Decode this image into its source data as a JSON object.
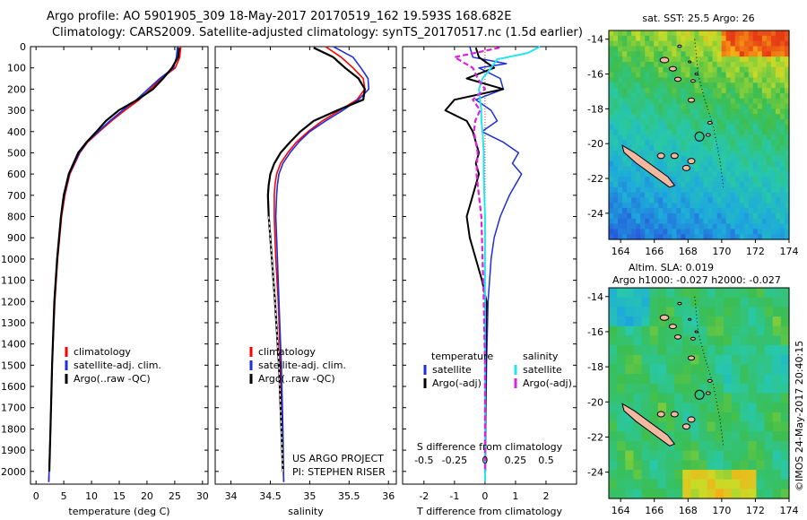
{
  "header": {
    "line1": "Argo profile: AO 5901905_309 18-May-2017 20170519_162 19.593S 168.682E",
    "line2": "Climatology: CARS2009. Satellite-adjusted climatology: synTS_20170517.nc (1.5d earlier)"
  },
  "side_stamp": "©IMOS 24-May-2017 20:40:15",
  "colors": {
    "clim": "#ff0000",
    "sat": "#1d2fdc",
    "argo": "#000000",
    "sat_s": "#22e5ee",
    "argo_s": "#dd22dd"
  },
  "depth_axis": {
    "ticks": [
      0,
      100,
      200,
      300,
      400,
      500,
      600,
      700,
      800,
      900,
      1000,
      1100,
      1200,
      1300,
      1400,
      1500,
      1600,
      1700,
      1800,
      1900,
      2000
    ],
    "range": [
      0,
      2060
    ]
  },
  "panels": [
    {
      "id": "temperature",
      "xlabel": "temperature (deg C)",
      "xlim": [
        -1,
        31
      ],
      "ticks": [
        0,
        5,
        10,
        15,
        20,
        25,
        30
      ],
      "legend": [
        {
          "key": "clim",
          "label": "climatology"
        },
        {
          "key": "sat",
          "label": "satellite-adj. clim."
        },
        {
          "key": "argo",
          "label": "Argo(..raw -QC)"
        }
      ]
    },
    {
      "id": "salinity",
      "xlabel": "salinity",
      "xlim": [
        33.8,
        36.1
      ],
      "ticks": [
        34,
        34.5,
        35,
        35.5,
        36
      ],
      "tick_labels": [
        "34",
        "34.5",
        "35",
        "35.5",
        "36"
      ],
      "legend": [
        {
          "key": "clim",
          "label": "climatology"
        },
        {
          "key": "sat",
          "label": "satellite-adj. clim."
        },
        {
          "key": "argo",
          "label": "Argo(..raw -QC)"
        }
      ],
      "note1": "US ARGO PROJECT",
      "note2": "PI: STEPHEN RISER"
    },
    {
      "id": "difference",
      "xlabel": "T difference from climatology",
      "xlim": [
        -2.7,
        3
      ],
      "ticks": [
        -2,
        -1,
        0,
        1,
        2
      ],
      "top_axis_title": "S difference from climatology",
      "top_ticks": [
        -0.5,
        -0.25,
        0,
        0.25,
        0.5
      ],
      "top_tick_labels": [
        "-0.5",
        "-0.25",
        "0",
        "0.25",
        "0.5"
      ],
      "legend_t_title": "temperature",
      "legend_s_title": "salinity",
      "legend": [
        {
          "key": "sat",
          "label": "satellite"
        },
        {
          "key": "argo",
          "label": "Argo(-adj)"
        },
        {
          "key": "sat_s",
          "label": "satellite"
        },
        {
          "key": "argo_s",
          "label": "Argo(-adj)"
        }
      ]
    }
  ],
  "maps": [
    {
      "id": "sst",
      "title1": "sat. SST: 25.5  Argo: 26",
      "title2": "",
      "lat_ticks": [
        -14,
        -16,
        -18,
        -20,
        -22,
        -24
      ],
      "lon_ticks": [
        164,
        166,
        168,
        170,
        172,
        174
      ],
      "lat_range": [
        -25.5,
        -13.5
      ],
      "lon_range": [
        163.3,
        174
      ]
    },
    {
      "id": "sla",
      "title1": "Altim. SLA: 0.019",
      "title2": "Argo h1000: -0.027 h2000: -0.027",
      "lat_ticks": [
        -14,
        -16,
        -18,
        -20,
        -22,
        -24
      ],
      "lon_ticks": [
        164,
        166,
        168,
        170,
        172,
        174
      ],
      "lat_range": [
        -25.5,
        -13.5
      ],
      "lon_range": [
        163.3,
        174
      ]
    }
  ],
  "chart_data": [
    {
      "type": "line",
      "title": "",
      "xlabel": "temperature (deg C)",
      "ylabel": "",
      "ylim": [
        2060,
        0
      ],
      "xlim": [
        -1,
        31
      ],
      "series": [
        {
          "name": "climatology",
          "depth": [
            0,
            50,
            100,
            150,
            200,
            250,
            300,
            350,
            400,
            450,
            500,
            600,
            700,
            800,
            1000,
            1200,
            1500,
            1800,
            2050
          ],
          "values": [
            26.1,
            25.9,
            25.1,
            22.6,
            20.6,
            18.6,
            16.0,
            13.6,
            11.4,
            9.3,
            7.9,
            6.1,
            5.2,
            4.6,
            3.9,
            3.4,
            2.9,
            2.6,
            2.3
          ]
        },
        {
          "name": "satellite-adj. clim.",
          "depth": [
            0,
            50,
            100,
            150,
            200,
            250,
            300,
            350,
            400,
            450,
            500,
            600,
            700,
            800,
            1000,
            1200,
            1500,
            1800,
            2050
          ],
          "values": [
            25.5,
            25.3,
            24.8,
            22.3,
            20.2,
            18.1,
            15.6,
            13.3,
            11.2,
            9.2,
            7.8,
            6.0,
            5.1,
            4.5,
            3.8,
            3.3,
            2.9,
            2.6,
            2.3
          ]
        },
        {
          "name": "Argo(..raw -QC)",
          "depth": [
            5,
            50,
            100,
            150,
            200,
            250,
            300,
            350,
            400,
            450,
            500,
            600,
            700,
            800,
            1000,
            1200,
            1500,
            1800,
            2000
          ],
          "values": [
            25.8,
            25.6,
            24.5,
            22.9,
            21.1,
            18.3,
            14.9,
            12.6,
            10.9,
            9.1,
            7.6,
            5.9,
            5.0,
            4.5,
            3.8,
            3.3,
            2.9,
            2.6,
            2.4
          ]
        }
      ]
    },
    {
      "type": "line",
      "title": "",
      "xlabel": "salinity",
      "ylabel": "",
      "ylim": [
        2060,
        0
      ],
      "xlim": [
        33.8,
        36.1
      ],
      "series": [
        {
          "name": "climatology",
          "depth": [
            0,
            50,
            100,
            150,
            200,
            250,
            300,
            350,
            400,
            450,
            500,
            550,
            600,
            650,
            700,
            800,
            900,
            1000,
            1200,
            1500,
            1800,
            2050
          ],
          "values": [
            35.2,
            35.4,
            35.55,
            35.68,
            35.7,
            35.6,
            35.38,
            35.16,
            34.98,
            34.83,
            34.72,
            34.63,
            34.58,
            34.56,
            34.55,
            34.55,
            34.56,
            34.57,
            34.6,
            34.63,
            34.65,
            34.67
          ]
        },
        {
          "name": "satellite-adj. clim.",
          "depth": [
            0,
            50,
            100,
            150,
            200,
            250,
            300,
            350,
            400,
            450,
            500,
            550,
            600,
            650,
            700,
            800,
            900,
            1000,
            1200,
            1500,
            1800,
            2050
          ],
          "values": [
            35.3,
            35.55,
            35.65,
            35.74,
            35.75,
            35.62,
            35.42,
            35.2,
            35.0,
            34.86,
            34.75,
            34.66,
            34.61,
            34.59,
            34.58,
            34.57,
            34.58,
            34.59,
            34.61,
            34.64,
            34.66,
            34.67
          ]
        },
        {
          "name": "Argo(..raw -QC)",
          "depth": [
            5,
            50,
            100,
            150,
            200,
            250,
            300,
            350,
            400,
            450,
            500,
            550,
            600,
            650,
            700,
            800,
            900,
            1000,
            1200,
            1500,
            1800,
            2000
          ],
          "values": [
            35.05,
            35.3,
            35.45,
            35.62,
            35.7,
            35.68,
            35.35,
            35.05,
            34.88,
            34.75,
            34.63,
            34.55,
            34.5,
            34.48,
            34.47,
            34.48,
            34.5,
            34.52,
            34.56,
            34.61,
            34.64,
            34.66
          ]
        }
      ]
    },
    {
      "type": "line",
      "title": "",
      "xlabel": "T difference from climatology",
      "ylabel": "",
      "ylim": [
        2060,
        0
      ],
      "xlim": [
        -2.7,
        3
      ],
      "series": [
        {
          "name": "temperature satellite",
          "depth": [
            0,
            50,
            80,
            100,
            150,
            200,
            250,
            300,
            350,
            400,
            450,
            500,
            550,
            600,
            700,
            800,
            900,
            1000,
            1200,
            1500,
            1800,
            2050
          ],
          "values": [
            -0.5,
            -0.4,
            0.7,
            -0.2,
            0.5,
            0.6,
            -0.3,
            0.2,
            0.4,
            -0.1,
            0.6,
            1.1,
            0.9,
            1.2,
            0.8,
            0.5,
            0.3,
            0.2,
            0.1,
            0.05,
            0.02,
            0
          ]
        },
        {
          "name": "temperature Argo(-adj)",
          "depth": [
            5,
            50,
            100,
            150,
            200,
            250,
            300,
            350,
            400,
            450,
            500,
            550,
            600,
            700,
            800,
            900,
            1000,
            1100,
            1200,
            1500,
            1800,
            2000
          ],
          "values": [
            -0.3,
            -0.2,
            0.3,
            -0.6,
            0.6,
            -1.0,
            -1.3,
            -0.6,
            -0.4,
            -0.3,
            -0.2,
            -0.3,
            -0.2,
            -0.4,
            -0.6,
            -0.5,
            -0.3,
            -0.1,
            0.05,
            0.02,
            0.01,
            0.01
          ]
        },
        {
          "name": "salinity satellite",
          "depth": [
            0,
            30,
            60,
            100,
            150,
            200,
            250,
            300,
            350,
            400,
            500,
            600,
            800,
            1000,
            1500,
            2050
          ],
          "values": [
            0.45,
            0.35,
            0.1,
            0.05,
            -0.02,
            -0.05,
            -0.04,
            -0.03,
            -0.03,
            -0.02,
            -0.01,
            -0.01,
            0,
            0,
            0,
            0
          ]
        },
        {
          "name": "salinity Argo(-adj)",
          "depth": [
            5,
            50,
            100,
            150,
            200,
            250,
            300,
            350,
            400,
            500,
            600,
            700,
            800,
            1000,
            1200,
            1500,
            2000
          ],
          "values": [
            0.12,
            -0.25,
            -0.1,
            -0.06,
            0.0,
            -0.1,
            -0.04,
            -0.08,
            -0.09,
            -0.06,
            -0.07,
            -0.05,
            -0.03,
            -0.02,
            -0.01,
            0,
            0
          ]
        }
      ]
    }
  ]
}
